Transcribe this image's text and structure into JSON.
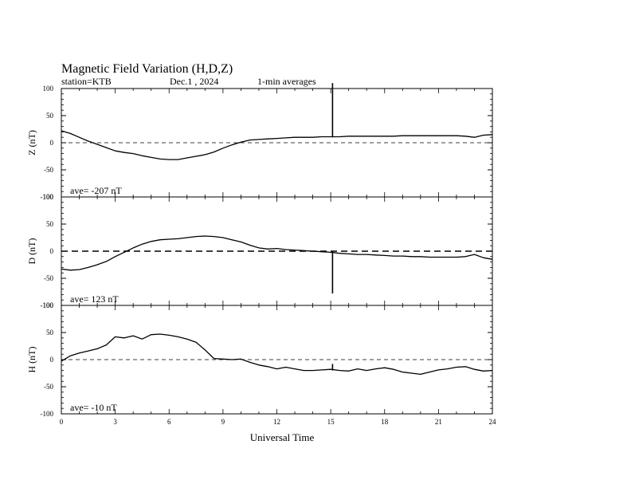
{
  "header": {
    "title": "Magnetic Field Variation (H,D,Z)",
    "station": "station=KTB",
    "date": "Dec.1 , 2024",
    "averaging": "1-min averages"
  },
  "chart_data": {
    "type": "line",
    "xlabel": "Universal Time",
    "xlim": [
      0,
      24
    ],
    "xticks": [
      0,
      3,
      6,
      9,
      12,
      15,
      18,
      21,
      24
    ],
    "panels": [
      {
        "ylabel": "Z (nT)",
        "ylim": [
          -100,
          100
        ],
        "yticks": [
          100,
          50,
          0,
          -50,
          -100
        ],
        "ave_label": "ave= -207 nT",
        "dash_style": "thin-dashed",
        "series": {
          "x": [
            0,
            0.5,
            1,
            1.5,
            2,
            2.5,
            3,
            3.5,
            4,
            4.5,
            5,
            5.5,
            6,
            6.5,
            7,
            7.5,
            8,
            8.5,
            9,
            9.5,
            10,
            10.5,
            11,
            11.5,
            12,
            12.5,
            13,
            13.5,
            14,
            14.5,
            15,
            15.5,
            16,
            16.5,
            17,
            17.5,
            18,
            18.5,
            19,
            19.5,
            20,
            20.5,
            21,
            21.5,
            22,
            22.5,
            23,
            23.5,
            24
          ],
          "y": [
            22,
            17,
            10,
            3,
            -3,
            -9,
            -15,
            -18,
            -20,
            -24,
            -27,
            -30,
            -31,
            -31,
            -28,
            -25,
            -22,
            -17,
            -10,
            -4,
            1,
            5,
            6,
            7,
            8,
            9,
            10,
            10,
            10,
            11,
            11,
            11,
            12,
            12,
            12,
            12,
            12,
            12,
            13,
            13,
            13,
            13,
            13,
            13,
            13,
            12,
            10,
            14,
            15
          ]
        },
        "spike": {
          "x": 15.1,
          "y_from": 10,
          "y_to": 110
        }
      },
      {
        "ylabel": "D (nT)",
        "ylim": [
          -100,
          100
        ],
        "yticks": [
          100,
          50,
          0,
          -50,
          -100
        ],
        "ave_label": "ave= 123  nT",
        "dash_style": "thick-dashed",
        "series": {
          "x": [
            0,
            0.5,
            1,
            1.5,
            2,
            2.5,
            3,
            3.5,
            4,
            4.5,
            5,
            5.5,
            6,
            6.5,
            7,
            7.5,
            8,
            8.5,
            9,
            9.5,
            10,
            10.5,
            11,
            11.5,
            12,
            12.5,
            13,
            13.5,
            14,
            14.5,
            15,
            15.5,
            16,
            16.5,
            17,
            17.5,
            18,
            18.5,
            19,
            19.5,
            20,
            20.5,
            21,
            21.5,
            22,
            22.5,
            23,
            23.5,
            24
          ],
          "y": [
            -33,
            -35,
            -34,
            -30,
            -25,
            -19,
            -10,
            -2,
            6,
            13,
            18,
            21,
            22,
            23,
            25,
            27,
            28,
            27,
            25,
            21,
            17,
            11,
            6,
            4,
            5,
            3,
            2,
            1,
            0,
            -1,
            -2,
            -4,
            -5,
            -6,
            -6,
            -7,
            -8,
            -9,
            -9,
            -10,
            -10,
            -11,
            -11,
            -11,
            -11,
            -10,
            -6,
            -12,
            -15
          ]
        },
        "spike": {
          "x": 15.1,
          "y_from": 0,
          "y_to": -78
        }
      },
      {
        "ylabel": "H (nT)",
        "ylim": [
          -100,
          100
        ],
        "yticks": [
          100,
          50,
          0,
          -50,
          -100
        ],
        "ave_label": "ave= -10   nT",
        "dash_style": "thin-dashed",
        "series": {
          "x": [
            0,
            0.5,
            1,
            1.5,
            2,
            2.5,
            3,
            3.5,
            4,
            4.5,
            5,
            5.5,
            6,
            6.5,
            7,
            7.5,
            8,
            8.5,
            9,
            9.5,
            10,
            10.5,
            11,
            11.5,
            12,
            12.5,
            13,
            13.5,
            14,
            14.5,
            15,
            15.5,
            16,
            16.5,
            17,
            17.5,
            18,
            18.5,
            19,
            19.5,
            20,
            20.5,
            21,
            21.5,
            22,
            22.5,
            23,
            23.5,
            24
          ],
          "y": [
            -3,
            7,
            12,
            16,
            20,
            27,
            42,
            40,
            44,
            38,
            46,
            47,
            45,
            42,
            38,
            32,
            18,
            2,
            1,
            0,
            1,
            -5,
            -10,
            -13,
            -17,
            -14,
            -17,
            -20,
            -20,
            -19,
            -18,
            -20,
            -21,
            -17,
            -20,
            -17,
            -15,
            -18,
            -23,
            -25,
            -27,
            -23,
            -19,
            -17,
            -14,
            -13,
            -18,
            -21,
            -20
          ]
        },
        "spike": {
          "x": 15.1,
          "y_from": -20,
          "y_to": -8
        }
      }
    ]
  }
}
